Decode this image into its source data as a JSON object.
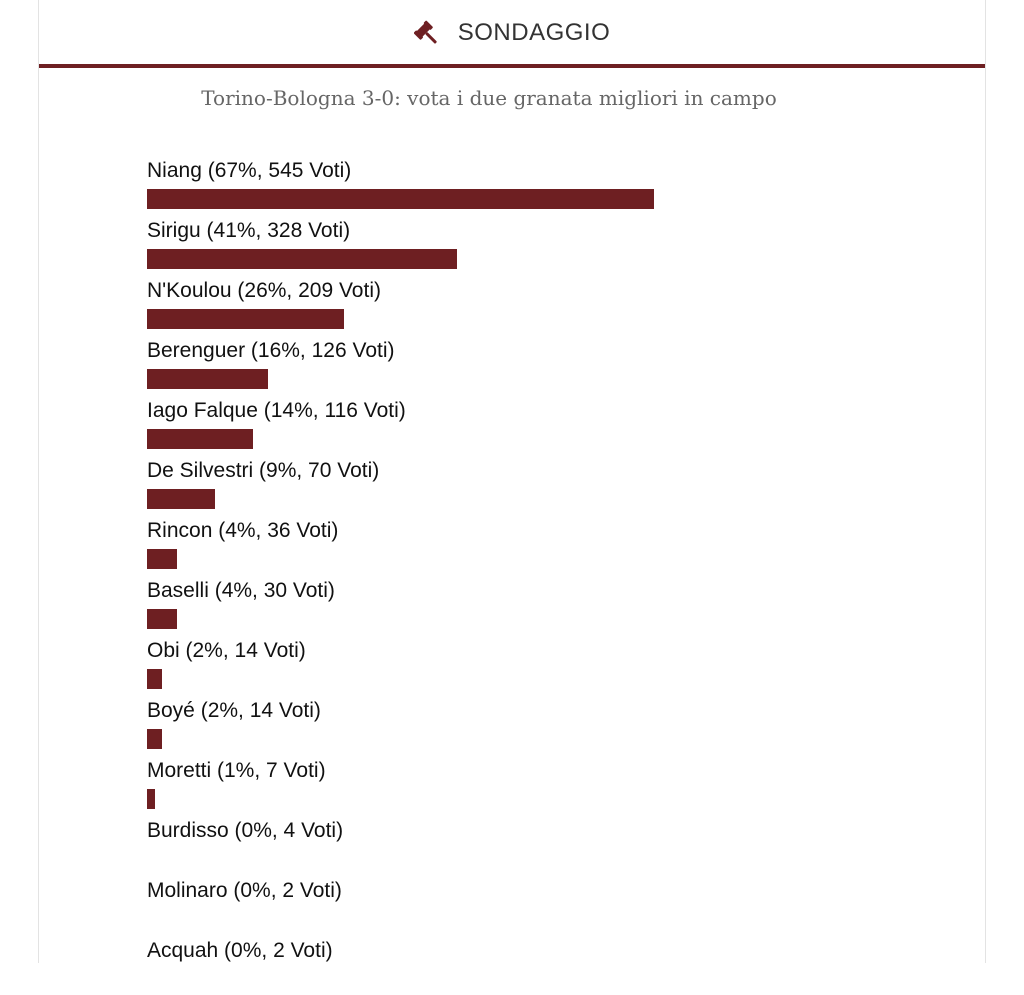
{
  "header": {
    "title": "SONDAGGIO",
    "icon": "gavel-icon",
    "accent_color": "#6e1f22"
  },
  "poll": {
    "question": "Torino-Bologna 3-0: vota i due granata migliori in campo",
    "options": [
      {
        "label": "Niang (67%, 545 Voti)",
        "percent": 67,
        "votes": 545
      },
      {
        "label": "Sirigu (41%, 328 Voti)",
        "percent": 41,
        "votes": 328
      },
      {
        "label": "N'Koulou (26%, 209 Voti)",
        "percent": 26,
        "votes": 209
      },
      {
        "label": "Berenguer (16%, 126 Voti)",
        "percent": 16,
        "votes": 126
      },
      {
        "label": "Iago Falque (14%, 116 Voti)",
        "percent": 14,
        "votes": 116
      },
      {
        "label": "De Silvestri (9%, 70 Voti)",
        "percent": 9,
        "votes": 70
      },
      {
        "label": "Rincon (4%, 36 Voti)",
        "percent": 4,
        "votes": 36
      },
      {
        "label": "Baselli (4%, 30 Voti)",
        "percent": 4,
        "votes": 30
      },
      {
        "label": "Obi (2%, 14 Voti)",
        "percent": 2,
        "votes": 14
      },
      {
        "label": "Boyé (2%, 14 Voti)",
        "percent": 2,
        "votes": 14
      },
      {
        "label": "Moretti (1%, 7 Voti)",
        "percent": 1,
        "votes": 7
      },
      {
        "label": "Burdisso (0%, 4 Voti)",
        "percent": 0,
        "votes": 4
      },
      {
        "label": "Molinaro (0%, 2 Voti)",
        "percent": 0,
        "votes": 2
      },
      {
        "label": "Acquah (0%, 2 Voti)",
        "percent": 0,
        "votes": 2
      }
    ]
  }
}
